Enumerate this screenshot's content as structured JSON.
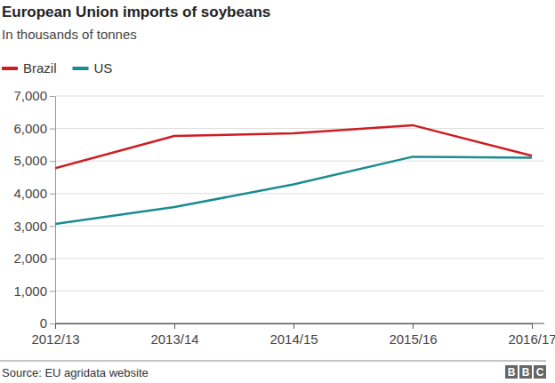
{
  "chart_data": {
    "type": "line",
    "title": "European Union imports of soybeans",
    "subtitle": "In thousands of tonnes",
    "categories": [
      "2012/13",
      "2013/14",
      "2014/15",
      "2015/16",
      "2016/17"
    ],
    "series": [
      {
        "name": "Brazil",
        "color": "#ce1d22",
        "values": [
          4780,
          5770,
          5850,
          6100,
          5160
        ]
      },
      {
        "name": "US",
        "color": "#1a8c8f",
        "values": [
          3060,
          3580,
          4280,
          5130,
          5100
        ]
      }
    ],
    "ylim": [
      0,
      7000
    ],
    "yticks": [
      0,
      {
        "value": 1000,
        "label": "1,000"
      },
      {
        "value": 2000,
        "label": "2,000"
      },
      {
        "value": 3000,
        "label": "3,000"
      },
      {
        "value": 4000,
        "label": "4,000"
      },
      {
        "value": 5000,
        "label": "5,000"
      },
      {
        "value": 6000,
        "label": "6,000"
      },
      {
        "value": 7000,
        "label": "7,000"
      }
    ],
    "grid": true,
    "legend": "top-left",
    "source": "Source: EU agridata website",
    "logo": "BBC"
  }
}
